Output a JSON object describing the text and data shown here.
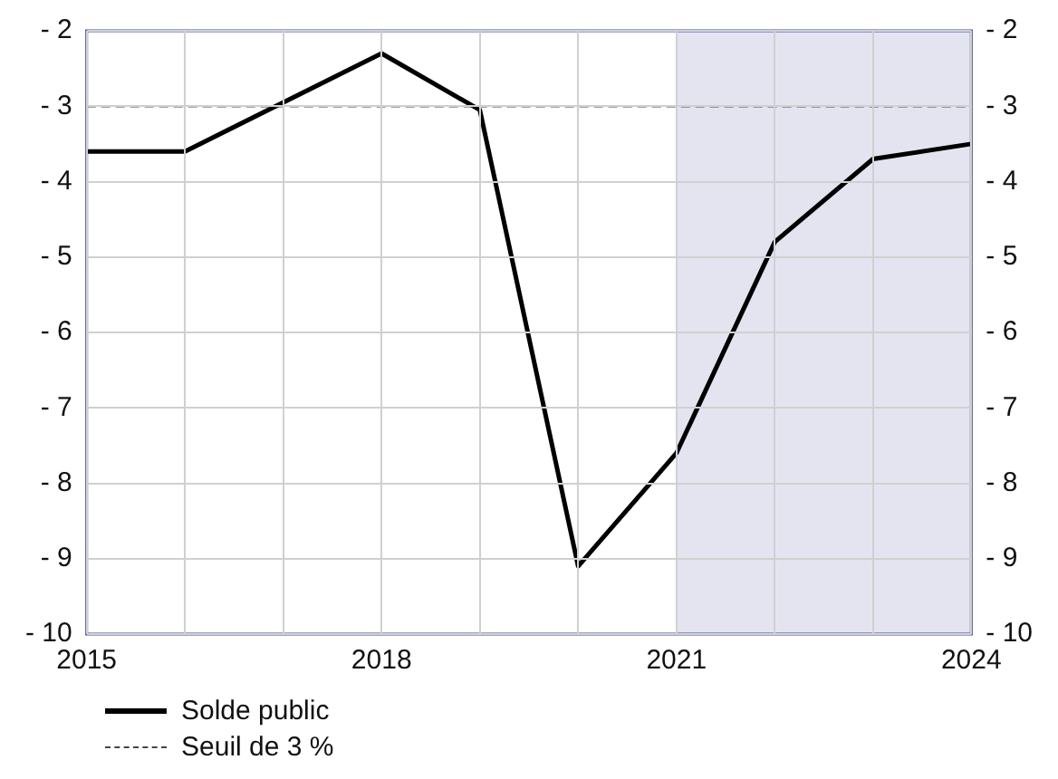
{
  "chart_data": {
    "type": "line",
    "x": [
      2015,
      2016,
      2018,
      2019,
      2020,
      2021,
      2022,
      2023,
      2024
    ],
    "series": [
      {
        "name": "Solde public",
        "color": "#000000",
        "values": [
          -3.6,
          -3.6,
          -2.3,
          -3.05,
          -9.1,
          -7.6,
          -4.8,
          -3.7,
          -3.5
        ]
      }
    ],
    "xlim": [
      2015,
      2024
    ],
    "xticks": [
      2015,
      {
        "value": 2016,
        "label": null
      },
      {
        "value": 2017,
        "label": null
      },
      2018,
      {
        "value": 2019,
        "label": null
      },
      {
        "value": 2020,
        "label": null
      },
      2021,
      {
        "value": 2022,
        "label": null
      },
      {
        "value": 2023,
        "label": null
      },
      2024
    ],
    "ylim": [
      -10,
      -2
    ],
    "yticks": [
      {
        "value": -10,
        "label": "- 10"
      },
      {
        "value": -9,
        "label": "- 9"
      },
      {
        "value": -8,
        "label": "- 8"
      },
      {
        "value": -7,
        "label": "- 7"
      },
      {
        "value": -6,
        "label": "- 6"
      },
      {
        "value": -5,
        "label": "- 5"
      },
      {
        "value": -4,
        "label": "- 4"
      },
      {
        "value": -3,
        "label": "- 3"
      },
      {
        "value": -2,
        "label": "- 2"
      }
    ],
    "y2lim": [
      -10,
      -2
    ],
    "y2ticks": [
      {
        "value": -10,
        "label": "- 10"
      },
      {
        "value": -9,
        "label": "- 9"
      },
      {
        "value": -8,
        "label": "- 8"
      },
      {
        "value": -7,
        "label": "- 7"
      },
      {
        "value": -6,
        "label": "- 6"
      },
      {
        "value": -5,
        "label": "- 5"
      },
      {
        "value": -4,
        "label": "- 4"
      },
      {
        "value": -3,
        "label": "- 3"
      },
      {
        "value": -2,
        "label": "- 2"
      }
    ],
    "ref_lines": [
      {
        "axis": "y",
        "value": -3,
        "label": "Seuil de 3 %",
        "color": "#444444",
        "line_style": "dashed"
      }
    ],
    "bands": [
      {
        "axis": "x",
        "from": 2021,
        "to": 2024,
        "color": "#e4e4f1"
      }
    ],
    "grid": true,
    "legend": "bottom left",
    "marker": "none",
    "line_style": "solid"
  }
}
